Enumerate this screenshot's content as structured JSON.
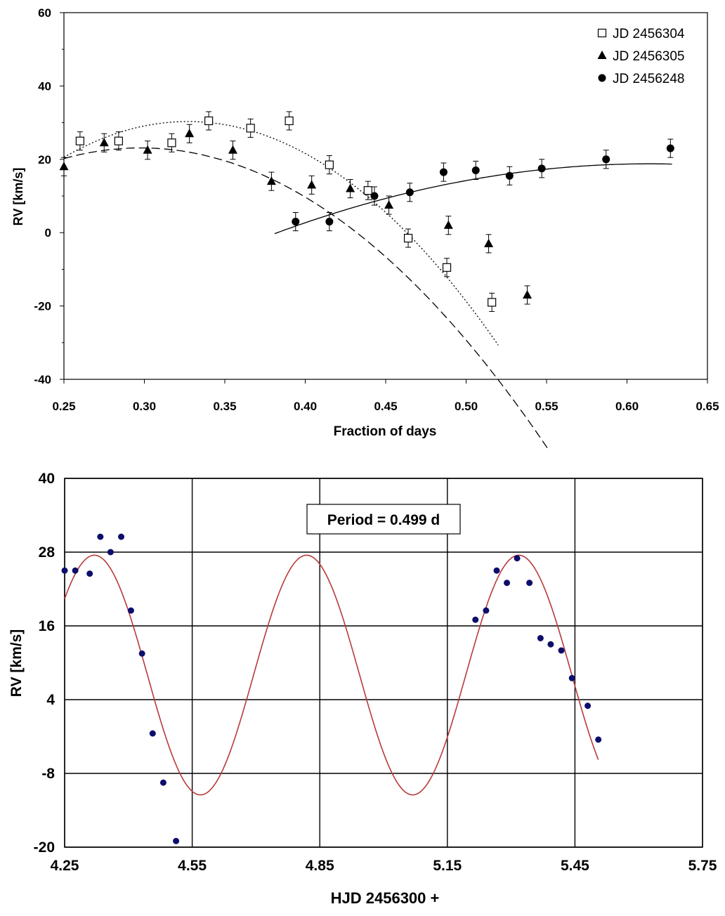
{
  "chart_data": [
    {
      "type": "scatter",
      "xlabel": "Fraction of days",
      "ylabel": "RV [km/s]",
      "xlim": [
        0.25,
        0.65
      ],
      "ylim": [
        -40,
        60
      ],
      "xticks": [
        "0.25",
        "0.30",
        "0.35",
        "0.40",
        "0.45",
        "0.50",
        "0.55",
        "0.60",
        "0.65"
      ],
      "yticks": [
        "-40",
        "-20",
        "0",
        "20",
        "40",
        "60"
      ],
      "grid": false,
      "legend_position": "top-right",
      "error_bar": 2.5,
      "series": [
        {
          "name": "JD 2456304",
          "marker": "open-square",
          "x": [
            0.26,
            0.284,
            0.317,
            0.34,
            0.366,
            0.39,
            0.415,
            0.439,
            0.464,
            0.488,
            0.516
          ],
          "y": [
            25,
            25,
            24.5,
            30.5,
            28.5,
            30.5,
            18.5,
            11.5,
            -1.5,
            -9.5,
            -19
          ]
        },
        {
          "name": "JD 2456305",
          "marker": "filled-triangle",
          "x": [
            0.25,
            0.275,
            0.302,
            0.328,
            0.355,
            0.379,
            0.404,
            0.428,
            0.452,
            0.489,
            0.514,
            0.538
          ],
          "y": [
            18,
            24.5,
            22.5,
            27,
            22.5,
            14,
            13,
            12,
            7.5,
            2,
            -3,
            -17
          ]
        },
        {
          "name": "JD 2456248",
          "marker": "filled-circle",
          "x": [
            0.394,
            0.415,
            0.443,
            0.465,
            0.486,
            0.506,
            0.527,
            0.547,
            0.587,
            0.627
          ],
          "y": [
            3,
            3,
            10,
            11,
            16.5,
            17,
            15.5,
            17.5,
            20,
            23
          ]
        }
      ],
      "fits": [
        {
          "series": "JD 2456304",
          "style": "dotted",
          "coef": [
            -1640,
            1073,
            -145.2
          ],
          "x_range": [
            0.25,
            0.52
          ]
        },
        {
          "series": "JD 2456305",
          "style": "dashed",
          "coef": [
            -1280,
            762,
            -90.3
          ],
          "x_range": [
            0.25,
            0.553
          ]
        },
        {
          "series": "JD 2456248",
          "style": "solid",
          "coef": [
            -350,
            430,
            -113.3
          ],
          "x_range": [
            0.381,
            0.628
          ]
        }
      ]
    },
    {
      "type": "scatter",
      "xlabel": "HJD 2456300 +",
      "ylabel": "RV [km/s]",
      "xlim": [
        4.25,
        5.75
      ],
      "ylim": [
        -20,
        40
      ],
      "xticks": [
        "4.25",
        "4.55",
        "4.85",
        "5.15",
        "5.45",
        "5.75"
      ],
      "yticks": [
        "-20",
        "-8",
        "4",
        "16",
        "28",
        "40"
      ],
      "grid": true,
      "annotation": "Period = 0.499 d",
      "marker_color": "#0d0d6b",
      "fit_color": "#b83a3a",
      "points": {
        "x": [
          4.25,
          4.275,
          4.309,
          4.334,
          4.358,
          4.383,
          4.406,
          4.432,
          4.457,
          4.482,
          4.512,
          5.216,
          5.241,
          5.266,
          5.29,
          5.314,
          5.343,
          5.369,
          5.393,
          5.418,
          5.443,
          5.48,
          5.505
        ],
        "y": [
          25,
          25,
          24.5,
          30.5,
          28,
          30.5,
          18.5,
          11.5,
          -1.5,
          -9.5,
          -19,
          17,
          18.5,
          25,
          23,
          27,
          23,
          14,
          13,
          12,
          7.5,
          3,
          -2.5
        ]
      },
      "fit": {
        "mean": 8,
        "amplitude": 19.5,
        "period": 0.499,
        "peak_hjd": 4.32,
        "x_range": [
          4.25,
          5.505
        ]
      }
    }
  ]
}
